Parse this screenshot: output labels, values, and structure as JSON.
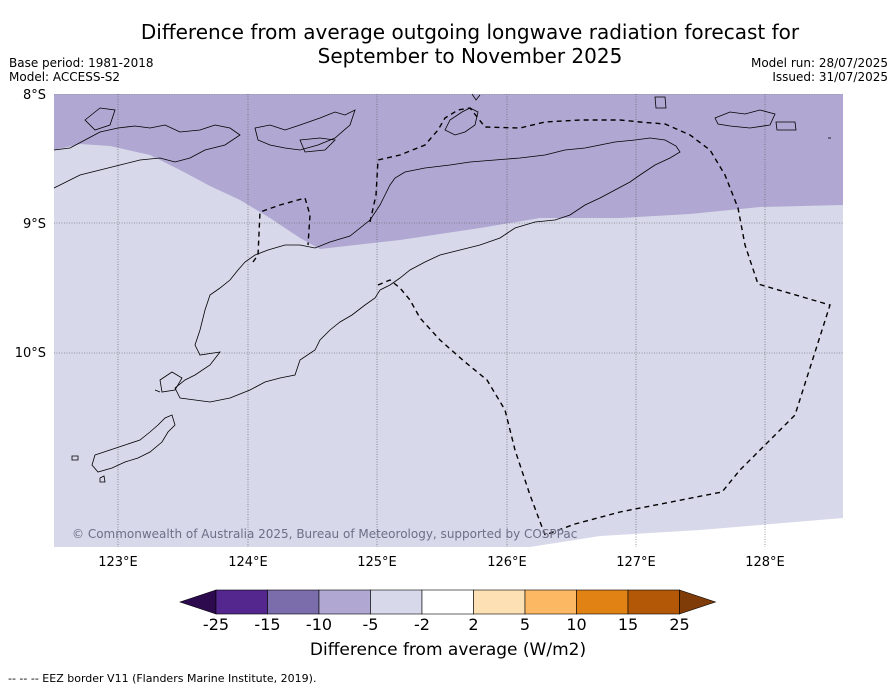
{
  "title_line1": "Difference from average outgoing longwave radiation forecast for",
  "title_line2": "September to November 2025",
  "meta": {
    "base_period": "Base period: 1981-2018",
    "model": "Model: ACCESS-S2",
    "model_run": "Model run: 28/07/2025",
    "issued": "Issued: 31/07/2025"
  },
  "map": {
    "lat_labels": [
      "8°S",
      "9°S",
      "10°S"
    ],
    "lon_labels": [
      "123°E",
      "124°E",
      "125°E",
      "126°E",
      "127°E",
      "128°E"
    ],
    "copyright": "© Commonwealth of Australia 2025, Bureau of Meteorology, supported by COSPPac"
  },
  "colorbar": {
    "title": "Difference from average (W/m2)",
    "ticks": [
      "-25",
      "-15",
      "-10",
      "-5",
      "-2",
      "2",
      "5",
      "10",
      "15",
      "25"
    ],
    "colors": [
      "#2d0a4e",
      "#54278f",
      "#7b6dab",
      "#b0a8d2",
      "#d7d8ea",
      "#ffffff",
      "#fde0b3",
      "#fdb863",
      "#e08214",
      "#b35806",
      "#7f3b08"
    ]
  },
  "footnote": "--  --  -- EEZ border V11 (Flanders Marine Institute, 2019)."
}
